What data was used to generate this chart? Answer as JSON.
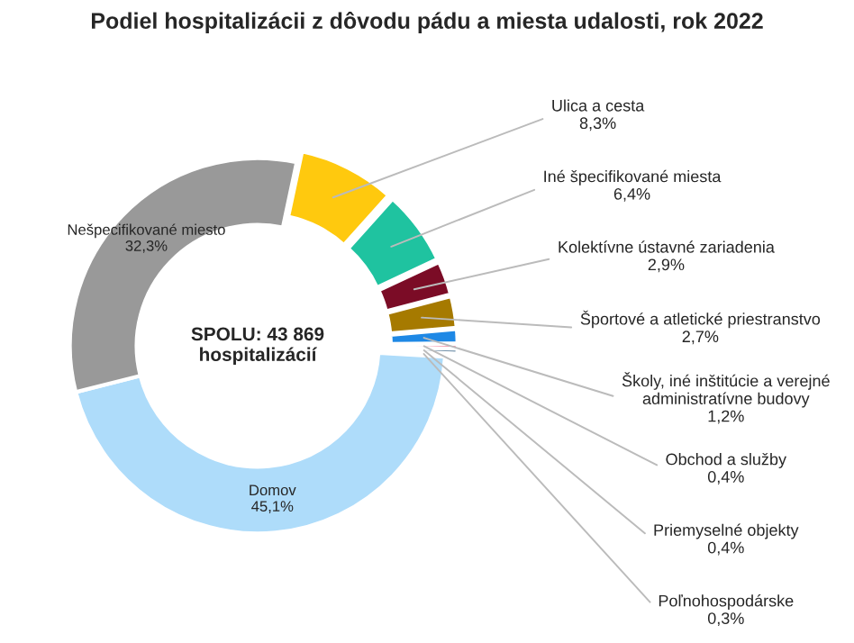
{
  "chart_data": {
    "type": "donut",
    "title": "Podiel hospitalizácii z dôvodu pádu a miesta udalosti, rok 2022",
    "categories": [
      "Ulica a cesta",
      "Iné špecifikované miesta",
      "Kolektívne ústavné zariadenia",
      "Športové a atletické priestranstvo",
      "Školy, iné inštitúcie a verejné administratívne budovy",
      "Obchod a služby",
      "Priemyselné objekty",
      "Poľnohospodárske",
      "Domov",
      "Nešpecifikované miesto"
    ],
    "values": [
      8.3,
      6.4,
      2.9,
      2.7,
      1.2,
      0.4,
      0.4,
      0.3,
      45.1,
      32.3
    ],
    "value_labels": [
      "8,3%",
      "6,4%",
      "2,9%",
      "2,7%",
      "1,2%",
      "0,4%",
      "0,4%",
      "0,3%",
      "45,1%",
      "32,3%"
    ],
    "colors": [
      "#ffc90e",
      "#1fc3a0",
      "#7b0c26",
      "#a67a00",
      "#1e88e5",
      "#f06080",
      "#2e5c80",
      "#ffe066",
      "#aedcfa",
      "#999999"
    ],
    "annotations": [
      "SPOLU: 43 869\nhospitalizácií"
    ]
  }
}
